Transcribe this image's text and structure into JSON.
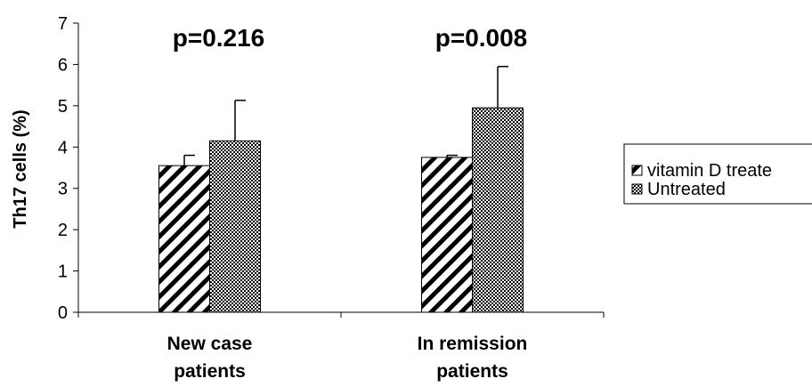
{
  "chart_data": {
    "type": "bar",
    "categories": [
      [
        "New case",
        "patients"
      ],
      [
        "In remission",
        "patients"
      ]
    ],
    "series": [
      {
        "name": "vitamin D treated",
        "values": [
          3.55,
          3.75
        ],
        "error_plus": [
          0.25,
          0.05
        ],
        "pattern": "diagonal-hatch"
      },
      {
        "name": "Untreated",
        "values": [
          4.15,
          4.95
        ],
        "error_plus": [
          0.98,
          1.0
        ],
        "pattern": "checkerboard"
      }
    ],
    "annotations": [
      "p=0.216",
      "p=0.008"
    ],
    "ylabel": "Th17 cells (%)",
    "xlabel": "",
    "ylim": [
      0,
      7
    ],
    "yticks": [
      0,
      1,
      2,
      3,
      4,
      5,
      6,
      7
    ],
    "legend": {
      "position": "right",
      "entries": [
        "vitamin D treate",
        "Untreated"
      ]
    },
    "grid": false
  }
}
